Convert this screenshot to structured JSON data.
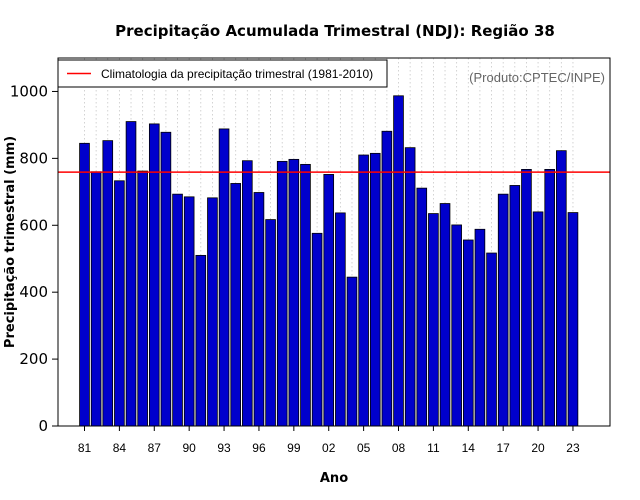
{
  "chart_data": {
    "type": "bar",
    "title": "Precipitação Acumulada Trimestral (NDJ): Região 38",
    "xlabel": "Ano",
    "ylabel": "Precipitação trimestral (mm)",
    "ylim": [
      0,
      1100
    ],
    "y_ticks": [
      0,
      200,
      400,
      600,
      800,
      1000
    ],
    "x_tick_labels": [
      "81",
      "84",
      "87",
      "90",
      "93",
      "96",
      "99",
      "02",
      "05",
      "08",
      "11",
      "14",
      "17",
      "20",
      "23"
    ],
    "x_tick_years": [
      1981,
      1984,
      1987,
      1990,
      1993,
      1996,
      1999,
      2002,
      2005,
      2008,
      2011,
      2014,
      2017,
      2020,
      2023
    ],
    "categories": [
      1981,
      1982,
      1983,
      1984,
      1985,
      1986,
      1987,
      1988,
      1989,
      1990,
      1991,
      1992,
      1993,
      1994,
      1995,
      1996,
      1997,
      1998,
      1999,
      2000,
      2001,
      2002,
      2003,
      2004,
      2005,
      2006,
      2007,
      2008,
      2009,
      2010,
      2011,
      2012,
      2013,
      2014,
      2015,
      2016,
      2017,
      2018,
      2019,
      2020,
      2021,
      2022,
      2023
    ],
    "values": [
      845,
      760,
      853,
      733,
      910,
      762,
      903,
      878,
      693,
      685,
      510,
      682,
      888,
      725,
      793,
      698,
      617,
      791,
      797,
      782,
      576,
      752,
      637,
      445,
      810,
      815,
      881,
      987,
      832,
      711,
      635,
      665,
      601,
      556,
      588,
      517,
      693,
      719,
      767,
      640,
      767,
      823,
      638
    ],
    "climatology": {
      "label": "Climatologia da precipitação trimestral (1981-2010)",
      "value": 759,
      "color": "#ff0000"
    },
    "legend_position": "top-left",
    "grid": "vertical dotted",
    "bar_color": "#0000cc"
  },
  "credit": "(Produto:CPTEC/INPE)"
}
